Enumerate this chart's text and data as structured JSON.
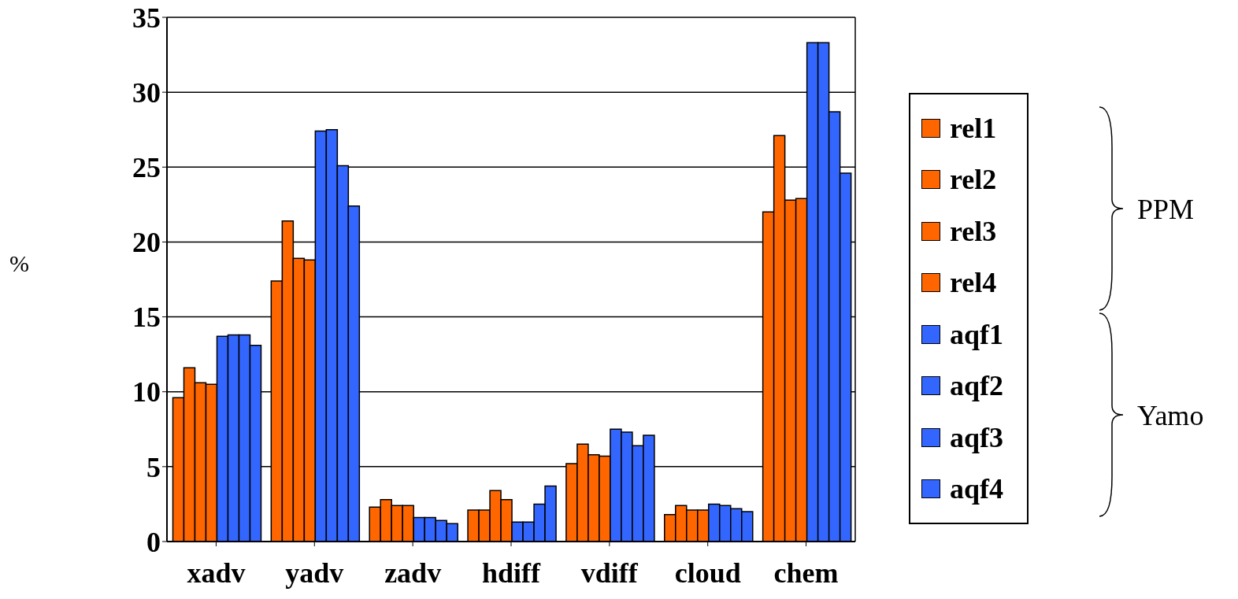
{
  "chart_data": {
    "type": "bar",
    "ylabel": "%",
    "categories": [
      "xadv",
      "yadv",
      "zadv",
      "hdiff",
      "vdiff",
      "cloud",
      "chem"
    ],
    "series": [
      {
        "name": "rel1",
        "color": "#ff6600",
        "values": [
          9.6,
          17.4,
          2.3,
          2.1,
          5.2,
          1.8,
          22.0
        ]
      },
      {
        "name": "rel2",
        "color": "#ff6600",
        "values": [
          11.6,
          21.4,
          2.8,
          2.1,
          6.5,
          2.4,
          27.1
        ]
      },
      {
        "name": "rel3",
        "color": "#ff6600",
        "values": [
          10.6,
          18.9,
          2.4,
          3.4,
          5.8,
          2.1,
          22.8
        ]
      },
      {
        "name": "rel4",
        "color": "#ff6600",
        "values": [
          10.5,
          18.8,
          2.4,
          2.8,
          5.7,
          2.1,
          22.9
        ]
      },
      {
        "name": "aqf1",
        "color": "#3366ff",
        "values": [
          13.7,
          27.4,
          1.6,
          1.3,
          7.5,
          2.5,
          33.3
        ]
      },
      {
        "name": "aqf2",
        "color": "#3366ff",
        "values": [
          13.8,
          27.5,
          1.6,
          1.3,
          7.3,
          2.4,
          33.3
        ]
      },
      {
        "name": "aqf3",
        "color": "#3366ff",
        "values": [
          13.8,
          25.1,
          1.4,
          2.5,
          6.4,
          2.2,
          28.7
        ]
      },
      {
        "name": "aqf4",
        "color": "#3366ff",
        "values": [
          13.1,
          22.4,
          1.2,
          3.7,
          7.1,
          2.0,
          24.6
        ]
      }
    ],
    "ylim": [
      0,
      35
    ],
    "yticks": [
      0,
      5,
      10,
      15,
      20,
      25,
      30,
      35
    ],
    "grid": "y",
    "legend": "right",
    "annotations": [
      "PPM",
      "Yamo"
    ]
  }
}
